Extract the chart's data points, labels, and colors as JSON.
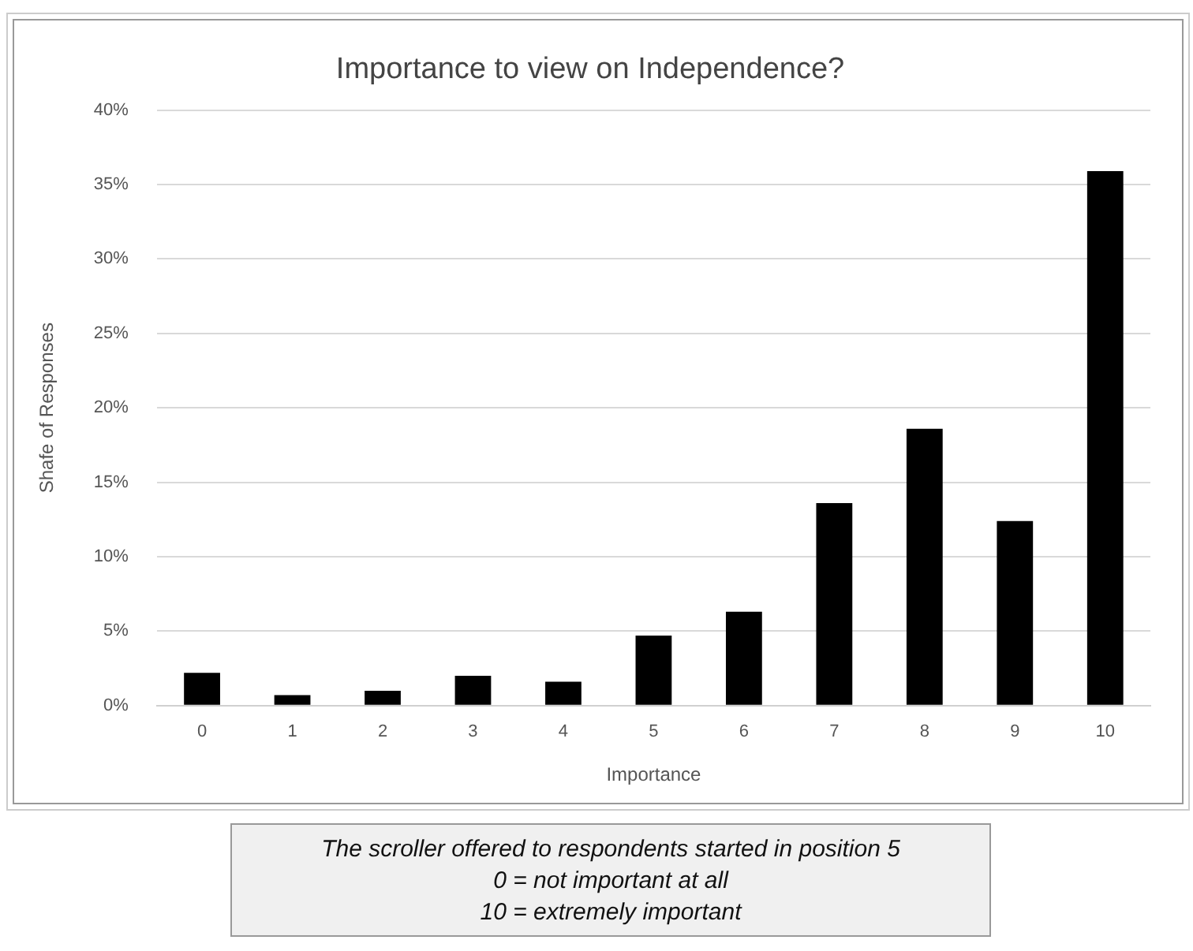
{
  "chart_data": {
    "type": "bar",
    "title": "Importance to view on Independence?",
    "xlabel": "Importance",
    "ylabel": "Shafe of Responses",
    "categories": [
      "0",
      "1",
      "2",
      "3",
      "4",
      "5",
      "6",
      "7",
      "8",
      "9",
      "10"
    ],
    "values": [
      2.2,
      0.7,
      1.0,
      2.0,
      1.6,
      4.7,
      6.3,
      13.6,
      18.6,
      12.4,
      35.9
    ],
    "color": "#000000",
    "ylim": [
      0,
      40
    ],
    "yticks": [
      {
        "value": 0,
        "label": "0%"
      },
      {
        "value": 5,
        "label": "5%"
      },
      {
        "value": 10,
        "label": "10%"
      },
      {
        "value": 15,
        "label": "15%"
      },
      {
        "value": 20,
        "label": "20%"
      },
      {
        "value": 25,
        "label": "25%"
      },
      {
        "value": 30,
        "label": "30%"
      },
      {
        "value": 35,
        "label": "35%"
      },
      {
        "value": 40,
        "label": "40%"
      }
    ],
    "grid": "y",
    "annotations": [
      "The scroller offered to respondents started in position 5",
      "0 = not important at all",
      "10 = extremely important"
    ]
  }
}
